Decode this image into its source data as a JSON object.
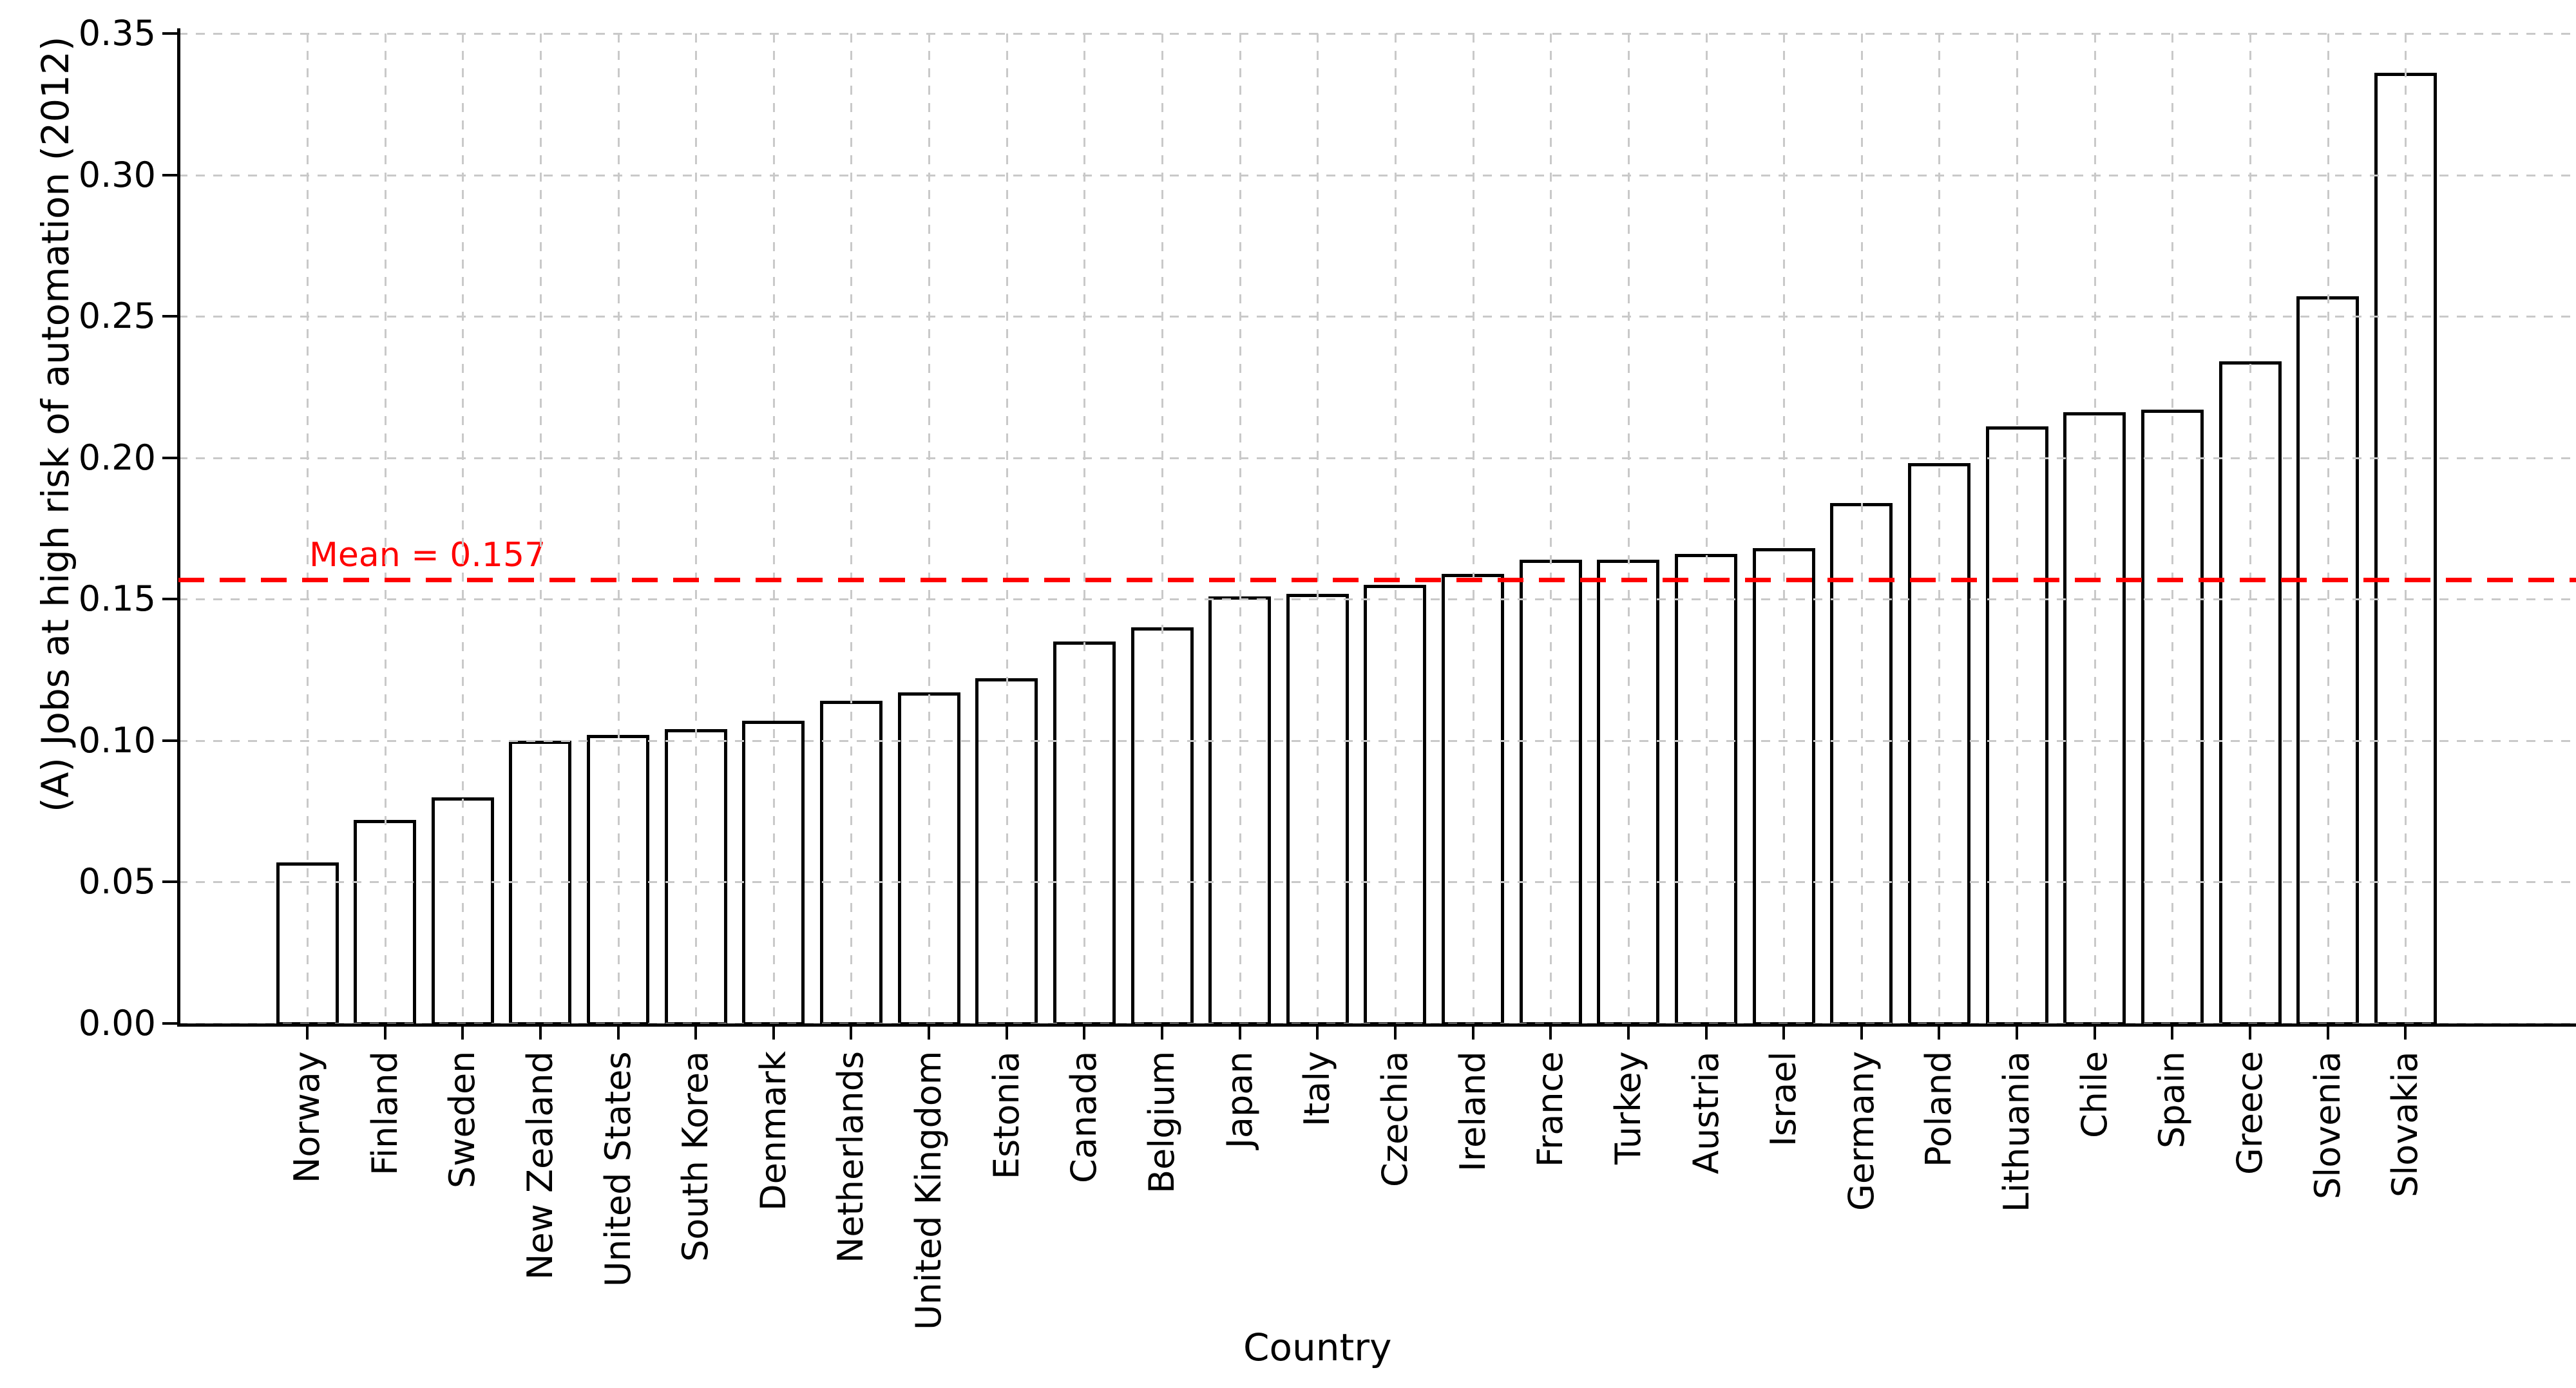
{
  "chart_data": {
    "type": "bar",
    "title": "",
    "xlabel": "Country",
    "ylabel": "(A) Jobs at high risk of automation (2012)",
    "categories": [
      "Norway",
      "Finland",
      "Sweden",
      "New Zealand",
      "United States",
      "South Korea",
      "Denmark",
      "Netherlands",
      "United Kingdom",
      "Estonia",
      "Canada",
      "Belgium",
      "Japan",
      "Italy",
      "Czechia",
      "Ireland",
      "France",
      "Turkey",
      "Austria",
      "Israel",
      "Germany",
      "Poland",
      "Lithuania",
      "Chile",
      "Spain",
      "Greece",
      "Slovenia",
      "Slovakia"
    ],
    "values": [
      0.057,
      0.072,
      0.08,
      0.1,
      0.102,
      0.104,
      0.107,
      0.114,
      0.117,
      0.122,
      0.135,
      0.14,
      0.151,
      0.152,
      0.155,
      0.159,
      0.164,
      0.164,
      0.166,
      0.168,
      0.184,
      0.198,
      0.211,
      0.216,
      0.217,
      0.234,
      0.257,
      0.336
    ],
    "ylim": [
      0,
      0.35
    ],
    "yticks": [
      "0.00",
      "0.05",
      "0.10",
      "0.15",
      "0.20",
      "0.25",
      "0.30",
      "0.35"
    ],
    "grid": "dashed, both axes, light gray, drawn above bars",
    "legend": "none",
    "mean_line": {
      "value": 0.157,
      "label": "Mean = 0.157",
      "color": "#ff0000",
      "style": "dashed"
    },
    "bar_fill": "#ffffff",
    "bar_edge": "#000000",
    "grid_color": "#c9c9c9"
  }
}
